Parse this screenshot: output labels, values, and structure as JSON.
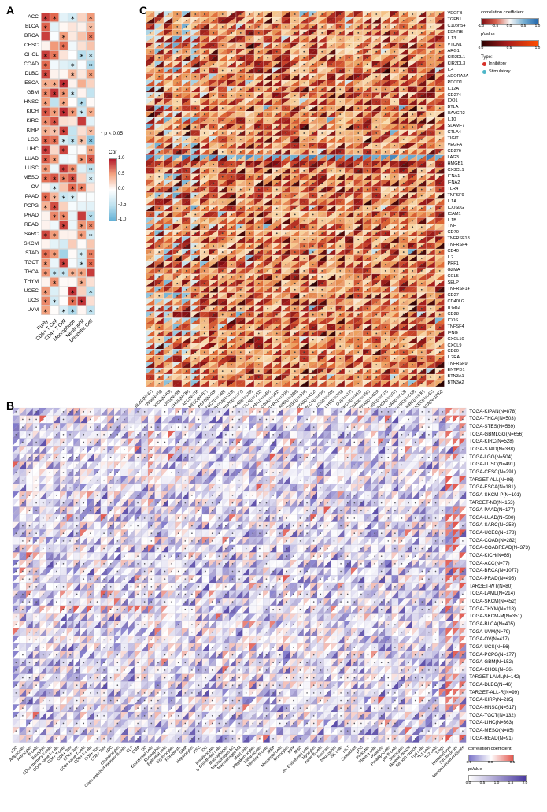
{
  "figure": {
    "background": "#ffffff"
  },
  "chart_data": [
    {
      "id": "A",
      "type": "heatmap",
      "glyph": "colored-cells-with-significance-asterisk",
      "rows": [
        "ACC",
        "BLCA",
        "BRCA",
        "CESC",
        "CHOL",
        "COAD",
        "DLBC",
        "ESCA",
        "GBM",
        "HNSC",
        "KICH",
        "KIRC",
        "KIRP",
        "LGG",
        "LIHC",
        "LUAD",
        "LUSC",
        "MESO",
        "OV",
        "PAAD",
        "PCPG",
        "PRAD",
        "READ",
        "SARC",
        "SKCM",
        "STAD",
        "TGCT",
        "THCA",
        "THYM",
        "UCEC",
        "UCS",
        "UVM"
      ],
      "columns": [
        "Purity",
        "CD8+ T Cell",
        "CD4+ T Cell",
        "Macrophage",
        "Neutrophil",
        "Dendritic Cell"
      ],
      "value_range": [
        -1.0,
        1.0
      ],
      "legend": {
        "sig_note": "* p < 0.05",
        "cor_title": "Cor",
        "cor_ticks": [
          "1.0",
          "0.5",
          "0.0",
          "-0.5",
          "-1.0"
        ]
      },
      "colors": {
        "pos_strong": "#b2182b",
        "pos_light": "#f4a582",
        "mid": "#ffffff",
        "neg_light": "#bfe2ef",
        "neg_strong": "#64b1d6"
      },
      "seed": 20240
    },
    {
      "id": "B",
      "type": "heatmap",
      "glyph": "split-triangles-with-dot",
      "rows": [
        "TCGA-KIPAN(N=878)",
        "TCGA-THCA(N=503)",
        "TCGA-STES(N=569)",
        "TCGA-GBMLGG(N=656)",
        "TCGA-KIRC(N=528)",
        "TCGA-STAD(N=388)",
        "TCGA-LGG(N=504)",
        "TCGA-LUSC(N=491)",
        "TCGA-CESC(N=291)",
        "TARGET-ALL(N=86)",
        "TCGA-ESCA(N=181)",
        "TCGA-SKCM-P(N=101)",
        "TARGET-NB(N=153)",
        "TCGA-PAAD(N=177)",
        "TCGA-LUAD(N=500)",
        "TCGA-SARC(N=258)",
        "TCGA-UCEC(N=178)",
        "TCGA-COAD(N=282)",
        "TCGA-COADREAD(N=373)",
        "TCGA-KICH(N=65)",
        "TCGA-ACC(N=77)",
        "TCGA-BRCA(N=1077)",
        "TCGA-PRAD(N=495)",
        "TARGET-WT(N=80)",
        "TCGA-LAML(N=214)",
        "TCGA-SKCM(N=452)",
        "TCGA-THYM(N=118)",
        "TCGA-SKCM-M(N=351)",
        "TCGA-BLCA(N=405)",
        "TCGA-UVM(N=79)",
        "TCGA-OV(N=417)",
        "TCGA-UCS(N=56)",
        "TCGA-PCPG(N=177)",
        "TCGA-GBM(N=152)",
        "TCGA-CHOL(N=36)",
        "TARGET-LAML(N=142)",
        "TCGA-DLBC(N=46)",
        "TARGET-ALL-R(N=99)",
        "TCGA-KIRP(N=285)",
        "TCGA-HNSC(N=517)",
        "TCGA-TGCT(N=132)",
        "TCGA-LIHC(N=363)",
        "TCGA-MESO(N=85)",
        "TCGA-READ(N=91)"
      ],
      "columns": [
        "aDC",
        "Adipocytes",
        "Astrocytes",
        "B-cells",
        "Basophils",
        "CD4+ memory T-cells",
        "CD4+ naive T-cells",
        "CD4+ T-cells",
        "CD4+ Tcm",
        "CD4+ Tem",
        "CD8+ naive T-cells",
        "CD8+ T-cells",
        "CD8+ Tcm",
        "CD8+ Tem",
        "cDC",
        "Chondrocytes",
        "Class-switched memory B-cells",
        "CLP",
        "CMP",
        "DC",
        "Endothelial cells",
        "Eosinophils",
        "Epithelial cells",
        "Erythrocytes",
        "Fibroblasts",
        "GMP",
        "Hepatocytes",
        "HSC",
        "iDC",
        "Keratinocytes",
        "ly Endothelial cells",
        "Macrophages",
        "Macrophages M1",
        "Macrophages M2",
        "Mast cells",
        "Megakaryocytes",
        "Melanocytes",
        "Memory B-cells",
        "MEP",
        "Mesangial cells",
        "Monocytes",
        "MPP",
        "MSC",
        "mv Endothelial cells",
        "Myocytes",
        "naive B-cells",
        "Neurons",
        "Neutrophils",
        "NK cells",
        "NKT",
        "Osteoblast",
        "pDC",
        "Pericytes",
        "Plasma cells",
        "Platelets",
        "Preadipocytes",
        "pro B-cells",
        "Sebocytes",
        "Skeletal muscle",
        "Smooth muscle",
        "Tgd cells",
        "Th1 cells",
        "Th2 cells",
        "Tregs",
        "ImmuneScore",
        "StromaScore",
        "MicroenvironmentScore"
      ],
      "value_range": [
        -0.5,
        0.5
      ],
      "legend": {
        "corr_title": "correlation coefficient",
        "corr_ticks": [
          "-0.5",
          "0.0",
          "0.5"
        ],
        "p_title": "pValue",
        "p_ticks": [
          "0.0",
          "0.5",
          "1.0",
          "1.5",
          "2.0"
        ]
      },
      "colors": {
        "neg": "#7b74c8",
        "mid": "#ffffff",
        "pos": "#e2574e",
        "p_low": "#ffffff",
        "p_high": "#4a3aa0"
      },
      "seed": 777
    },
    {
      "id": "C",
      "type": "heatmap",
      "glyph": "split-triangles-with-dot",
      "rows": [
        "VEGFB",
        "TGFB1",
        "C10orf54",
        "EDNRB",
        "IL13",
        "VTCN1",
        "ARG1",
        "KIR2DL1",
        "KIR2DL3",
        "IL4",
        "ADORA2A",
        "PDCD1",
        "IL12A",
        "CD274",
        "IDO1",
        "BTLA",
        "HAVCR2",
        "IL10",
        "SLAMF7",
        "CTLA4",
        "TIGIT",
        "VEGFA",
        "CD276",
        "LAG3",
        "HMGB1",
        "CX3CL1",
        "IFNA1",
        "IFNA2",
        "TLR4",
        "TNFSF9",
        "IL1A",
        "ICOSLG",
        "ICAM1",
        "IL1B",
        "TNF",
        "CD70",
        "TNFRSF18",
        "TNFRSF4",
        "CD40",
        "IL2",
        "PRF1",
        "GZMA",
        "CCL5",
        "SELP",
        "TNFRSF14",
        "CD27",
        "CD40LG",
        "ITGB2",
        "CD28",
        "ICOS",
        "TNFSF4",
        "IFNG",
        "CXCL10",
        "CXCL9",
        "CD80",
        "IL2RA",
        "TNFRSF9",
        "ENTPD1",
        "BTN3A1",
        "BTN3A2"
      ],
      "columns": [
        "DLBC(N=47)",
        "UVM(N=79)",
        "KICH(N=66)",
        "UCS(N=56)",
        "CHOL(N=36)",
        "ACC(N=79)",
        "MESO(N=87)",
        "READ(N=93)",
        "TGCT(N=148)",
        "THYM(N=119)",
        "PCPG(N=177)",
        "PAAD(N=178)",
        "ESCA(N=181)",
        "LAML(N=149)",
        "GBM(N=161)",
        "SARC(N=258)",
        "KIRP(N=288)",
        "CESC(N=304)",
        "STAD(N=412)",
        "BLCA(N=404)",
        "LGG(N=508)",
        "LIHC(N=370)",
        "OV(N=417)",
        "SKCM(N=467)",
        "COAD(N=450)",
        "PRAD(N=495)",
        "LUSC(N=501)",
        "THCA(N=507)",
        "LUAD(N=513)",
        "HNSC(N=518)",
        "KIRC(N=530)",
        "UCEC(N=542)",
        "BRCA(N=1092)"
      ],
      "value_range": [
        -1.0,
        1.0
      ],
      "legend": {
        "corr_title": "correlation coefficient",
        "corr_ticks": [
          "-1.0",
          "-0.5",
          "0.0",
          "0.5",
          "1.0"
        ],
        "p_title": "pValue",
        "p_ticks": [
          "0.0",
          "0.5",
          "1.0"
        ],
        "type_title": "Type:",
        "types": [
          {
            "label": "Inhibitory",
            "color": "#d73027"
          },
          {
            "label": "Stimulatory",
            "color": "#4db6c8"
          }
        ]
      },
      "colors": {
        "corr_neg_strong": "#7e0c12",
        "corr_neg": "#d6604d",
        "corr_mid": "#f7f7f7",
        "corr_pos": "#74add1",
        "corr_pos_strong": "#2166ac",
        "p_low": "#2a0202",
        "p_mid": "#a61c1c",
        "p_high": "#ff4e00"
      },
      "seed": 1313
    }
  ]
}
